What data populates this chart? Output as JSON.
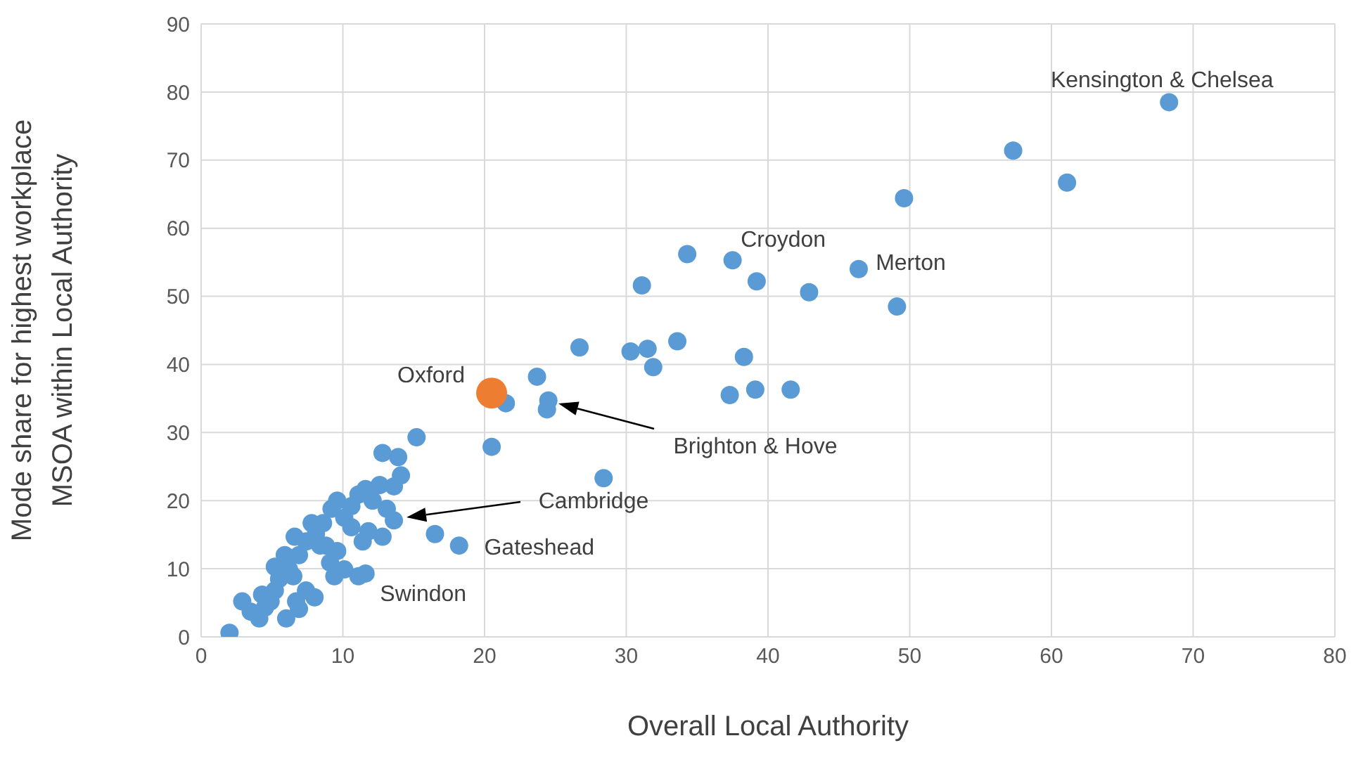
{
  "chart_data": {
    "type": "scatter",
    "xlabel": "Overall Local Authority",
    "ylabel": "Mode share for highest workplace MSOA within Local Authority",
    "xlim": [
      0,
      80
    ],
    "xticks": [
      0,
      10,
      20,
      30,
      40,
      50,
      60,
      70,
      80
    ],
    "ylim": [
      0,
      90
    ],
    "yticks": [
      0,
      10,
      20,
      30,
      40,
      50,
      60,
      70,
      80,
      90
    ],
    "grid": true,
    "legend": false,
    "marker": "circle",
    "series": [
      {
        "color": "#5b9bd5",
        "x": [
          68.3,
          57.3,
          61.1,
          49.6,
          34.3,
          37.5,
          39.2,
          31.1,
          42.9,
          46.4,
          49.1,
          26.7,
          30.3,
          31.5,
          33.6,
          31.9,
          38.3,
          23.7,
          37.3,
          39.1,
          41.6,
          24.5,
          24.4,
          21.5,
          20.5,
          28.4,
          15.2,
          16.5,
          18.2,
          2.0,
          2.9,
          3.5,
          4.1,
          4.5,
          4.9,
          4.3,
          5.2,
          5.5,
          6.2,
          6.7,
          6.9,
          6.0,
          7.4,
          8.0,
          6.9,
          7.4,
          8.1,
          8.6,
          9.2,
          9.6,
          10.1,
          10.6,
          11.1,
          11.6,
          12.1,
          12.6,
          13.1,
          13.6,
          12.8,
          11.8,
          10.6,
          9.6,
          9.1,
          10.1,
          9.4,
          11.1,
          11.6,
          12.8,
          13.9,
          14.1,
          13.6,
          11.4,
          8.4,
          7.8,
          6.5,
          5.2,
          5.9,
          6.6,
          8.8
        ],
        "values": [
          78.5,
          71.4,
          66.7,
          64.4,
          56.2,
          55.3,
          52.2,
          51.6,
          50.6,
          54.0,
          48.5,
          42.5,
          41.9,
          42.3,
          43.4,
          39.6,
          41.1,
          38.2,
          35.5,
          36.3,
          36.3,
          34.7,
          33.4,
          34.3,
          27.9,
          23.3,
          29.3,
          15.1,
          13.4,
          0.6,
          5.2,
          3.7,
          2.7,
          4.3,
          5.2,
          6.2,
          6.8,
          8.5,
          9.9,
          5.2,
          4.1,
          2.7,
          6.8,
          5.8,
          12.0,
          14.0,
          15.1,
          16.7,
          18.8,
          20.0,
          17.5,
          19.2,
          20.9,
          21.7,
          20.0,
          22.3,
          18.8,
          17.1,
          14.7,
          15.5,
          16.1,
          12.6,
          10.9,
          9.9,
          8.9,
          8.9,
          9.3,
          27.0,
          26.4,
          23.7,
          22.1,
          14.0,
          13.4,
          16.7,
          8.9,
          10.3,
          12.0,
          14.7,
          13.4
        ]
      },
      {
        "color": "#ed7d31",
        "x": [
          20.5
        ],
        "values": [
          35.8
        ]
      }
    ],
    "annotations": [
      {
        "text": "Kensington & Chelsea",
        "x": 68.3,
        "y": 78.5
      },
      {
        "text": "Croydon",
        "x": 37.5,
        "y": 55.3
      },
      {
        "text": "Merton",
        "x": 46.4,
        "y": 54.0
      },
      {
        "text": "Oxford",
        "x": 20.5,
        "y": 35.8
      },
      "Brighton & Hove",
      "Cambridge",
      {
        "text": "Gateshead",
        "x": 18.2,
        "y": 13.4
      },
      {
        "text": "Swindon",
        "x": 11.6,
        "y": 9.3
      }
    ]
  }
}
